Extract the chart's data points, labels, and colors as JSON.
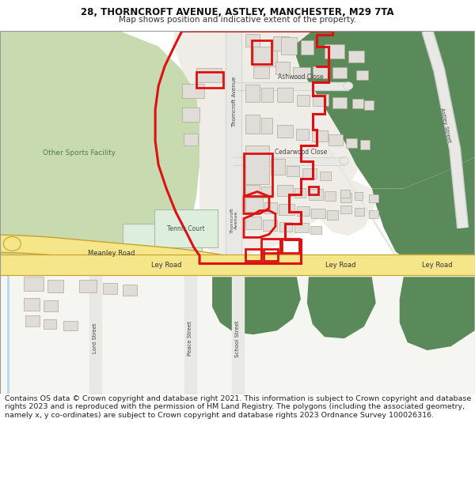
{
  "title_line1": "28, THORNCROFT AVENUE, ASTLEY, MANCHESTER, M29 7TA",
  "title_line2": "Map shows position and indicative extent of the property.",
  "footer_text": "Contains OS data © Crown copyright and database right 2021. This information is subject to Crown copyright and database rights 2023 and is reproduced with the permission of HM Land Registry. The polygons (including the associated geometry, namely x, y co-ordinates) are subject to Crown copyright and database rights 2023 Ordnance Survey 100026316.",
  "title_fontsize": 8.5,
  "subtitle_fontsize": 7.5,
  "footer_fontsize": 6.8,
  "green_light": "#c8dbb0",
  "green_dark": "#5a8a5a",
  "road_yellow": "#f5e68a",
  "road_yellow_border": "#c8a030",
  "building_fill": "#e0dcd8",
  "building_stroke": "#b0a898",
  "red_line": "#dd1111",
  "white": "#ffffff",
  "bg_white": "#f8f8f8",
  "fig_width": 6.0,
  "fig_height": 6.25
}
